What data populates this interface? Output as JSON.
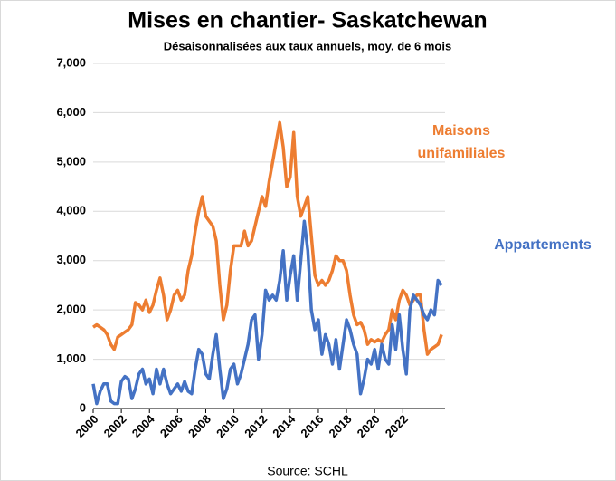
{
  "chart_data": {
    "type": "line",
    "title": "Mises en chantier- Saskatchewan",
    "subtitle": "Désaisonnalisées aux taux annuels, moy. de 6 mois",
    "source": "Source: SCHL",
    "x": [
      2000,
      2000.25,
      2000.5,
      2000.75,
      2001,
      2001.25,
      2001.5,
      2001.75,
      2002,
      2002.25,
      2002.5,
      2002.75,
      2003,
      2003.25,
      2003.5,
      2003.75,
      2004,
      2004.25,
      2004.5,
      2004.75,
      2005,
      2005.25,
      2005.5,
      2005.75,
      2006,
      2006.25,
      2006.5,
      2006.75,
      2007,
      2007.25,
      2007.5,
      2007.75,
      2008,
      2008.25,
      2008.5,
      2008.75,
      2009,
      2009.25,
      2009.5,
      2009.75,
      2010,
      2010.25,
      2010.5,
      2010.75,
      2011,
      2011.25,
      2011.5,
      2011.75,
      2012,
      2012.25,
      2012.5,
      2012.75,
      2013,
      2013.25,
      2013.5,
      2013.75,
      2014,
      2014.25,
      2014.5,
      2014.75,
      2015,
      2015.25,
      2015.5,
      2015.75,
      2016,
      2016.25,
      2016.5,
      2016.75,
      2017,
      2017.25,
      2017.5,
      2017.75,
      2018,
      2018.25,
      2018.5,
      2018.75,
      2019,
      2019.25,
      2019.5,
      2019.75,
      2020,
      2020.25,
      2020.5,
      2020.75,
      2021,
      2021.25,
      2021.5,
      2021.75,
      2022,
      2022.25,
      2022.5,
      2022.75,
      2023,
      2023.25,
      2023.5,
      2023.75,
      2024,
      2024.25,
      2024.5,
      2024.75
    ],
    "series": [
      {
        "name": "Maisons unifamiliales",
        "color": "#ed7d31",
        "values": [
          1650,
          1700,
          1650,
          1600,
          1500,
          1300,
          1200,
          1450,
          1500,
          1550,
          1600,
          1700,
          2150,
          2100,
          2000,
          2200,
          1950,
          2100,
          2400,
          2650,
          2300,
          1800,
          2000,
          2300,
          2400,
          2200,
          2300,
          2800,
          3100,
          3600,
          4000,
          4300,
          3900,
          3800,
          3700,
          3400,
          2500,
          1800,
          2100,
          2800,
          3300,
          3300,
          3300,
          3600,
          3300,
          3400,
          3700,
          4000,
          4300,
          4100,
          4600,
          5000,
          5400,
          5800,
          5300,
          4500,
          4700,
          5600,
          4300,
          3900,
          4100,
          4300,
          3500,
          2700,
          2500,
          2600,
          2500,
          2600,
          2800,
          3100,
          3000,
          3000,
          2800,
          2300,
          1900,
          1700,
          1750,
          1600,
          1300,
          1400,
          1350,
          1400,
          1350,
          1500,
          1600,
          2000,
          1800,
          2200,
          2400,
          2300,
          2100,
          2200,
          2300,
          2300,
          1600,
          1100,
          1200,
          1250,
          1300,
          1500
        ]
      },
      {
        "name": "Appartements",
        "color": "#4472c4",
        "values": [
          500,
          100,
          350,
          500,
          500,
          150,
          100,
          100,
          550,
          650,
          600,
          200,
          400,
          700,
          800,
          500,
          600,
          300,
          800,
          500,
          800,
          500,
          300,
          400,
          500,
          350,
          550,
          350,
          300,
          800,
          1200,
          1100,
          700,
          600,
          1100,
          1500,
          800,
          200,
          400,
          800,
          900,
          500,
          700,
          1000,
          1300,
          1800,
          1900,
          1000,
          1500,
          2400,
          2200,
          2300,
          2200,
          2600,
          3200,
          2200,
          2700,
          3100,
          2200,
          3000,
          3800,
          3200,
          2000,
          1600,
          1800,
          1100,
          1500,
          1300,
          900,
          1400,
          800,
          1300,
          1800,
          1600,
          1300,
          1100,
          300,
          600,
          1000,
          900,
          1200,
          800,
          1300,
          1000,
          900,
          1700,
          1200,
          1900,
          1200,
          700,
          2000,
          2300,
          2200,
          2100,
          1900,
          1800,
          2000,
          1900,
          2600,
          2500
        ]
      }
    ],
    "xlim": [
      2000,
      2025
    ],
    "xticks": [
      2000,
      2002,
      2004,
      2006,
      2008,
      2010,
      2012,
      2014,
      2016,
      2018,
      2020,
      2022
    ],
    "ylim": [
      0,
      7000
    ],
    "yticks": [
      0,
      {
        "value": 1000,
        "label": "1,000"
      },
      {
        "value": 2000,
        "label": "2,000"
      },
      {
        "value": 3000,
        "label": "3,000"
      },
      {
        "value": 4000,
        "label": "4,000"
      },
      {
        "value": 5000,
        "label": "5,000"
      },
      {
        "value": 6000,
        "label": "6,000"
      },
      {
        "value": 7000,
        "label": "7,000"
      }
    ],
    "grid": true
  }
}
